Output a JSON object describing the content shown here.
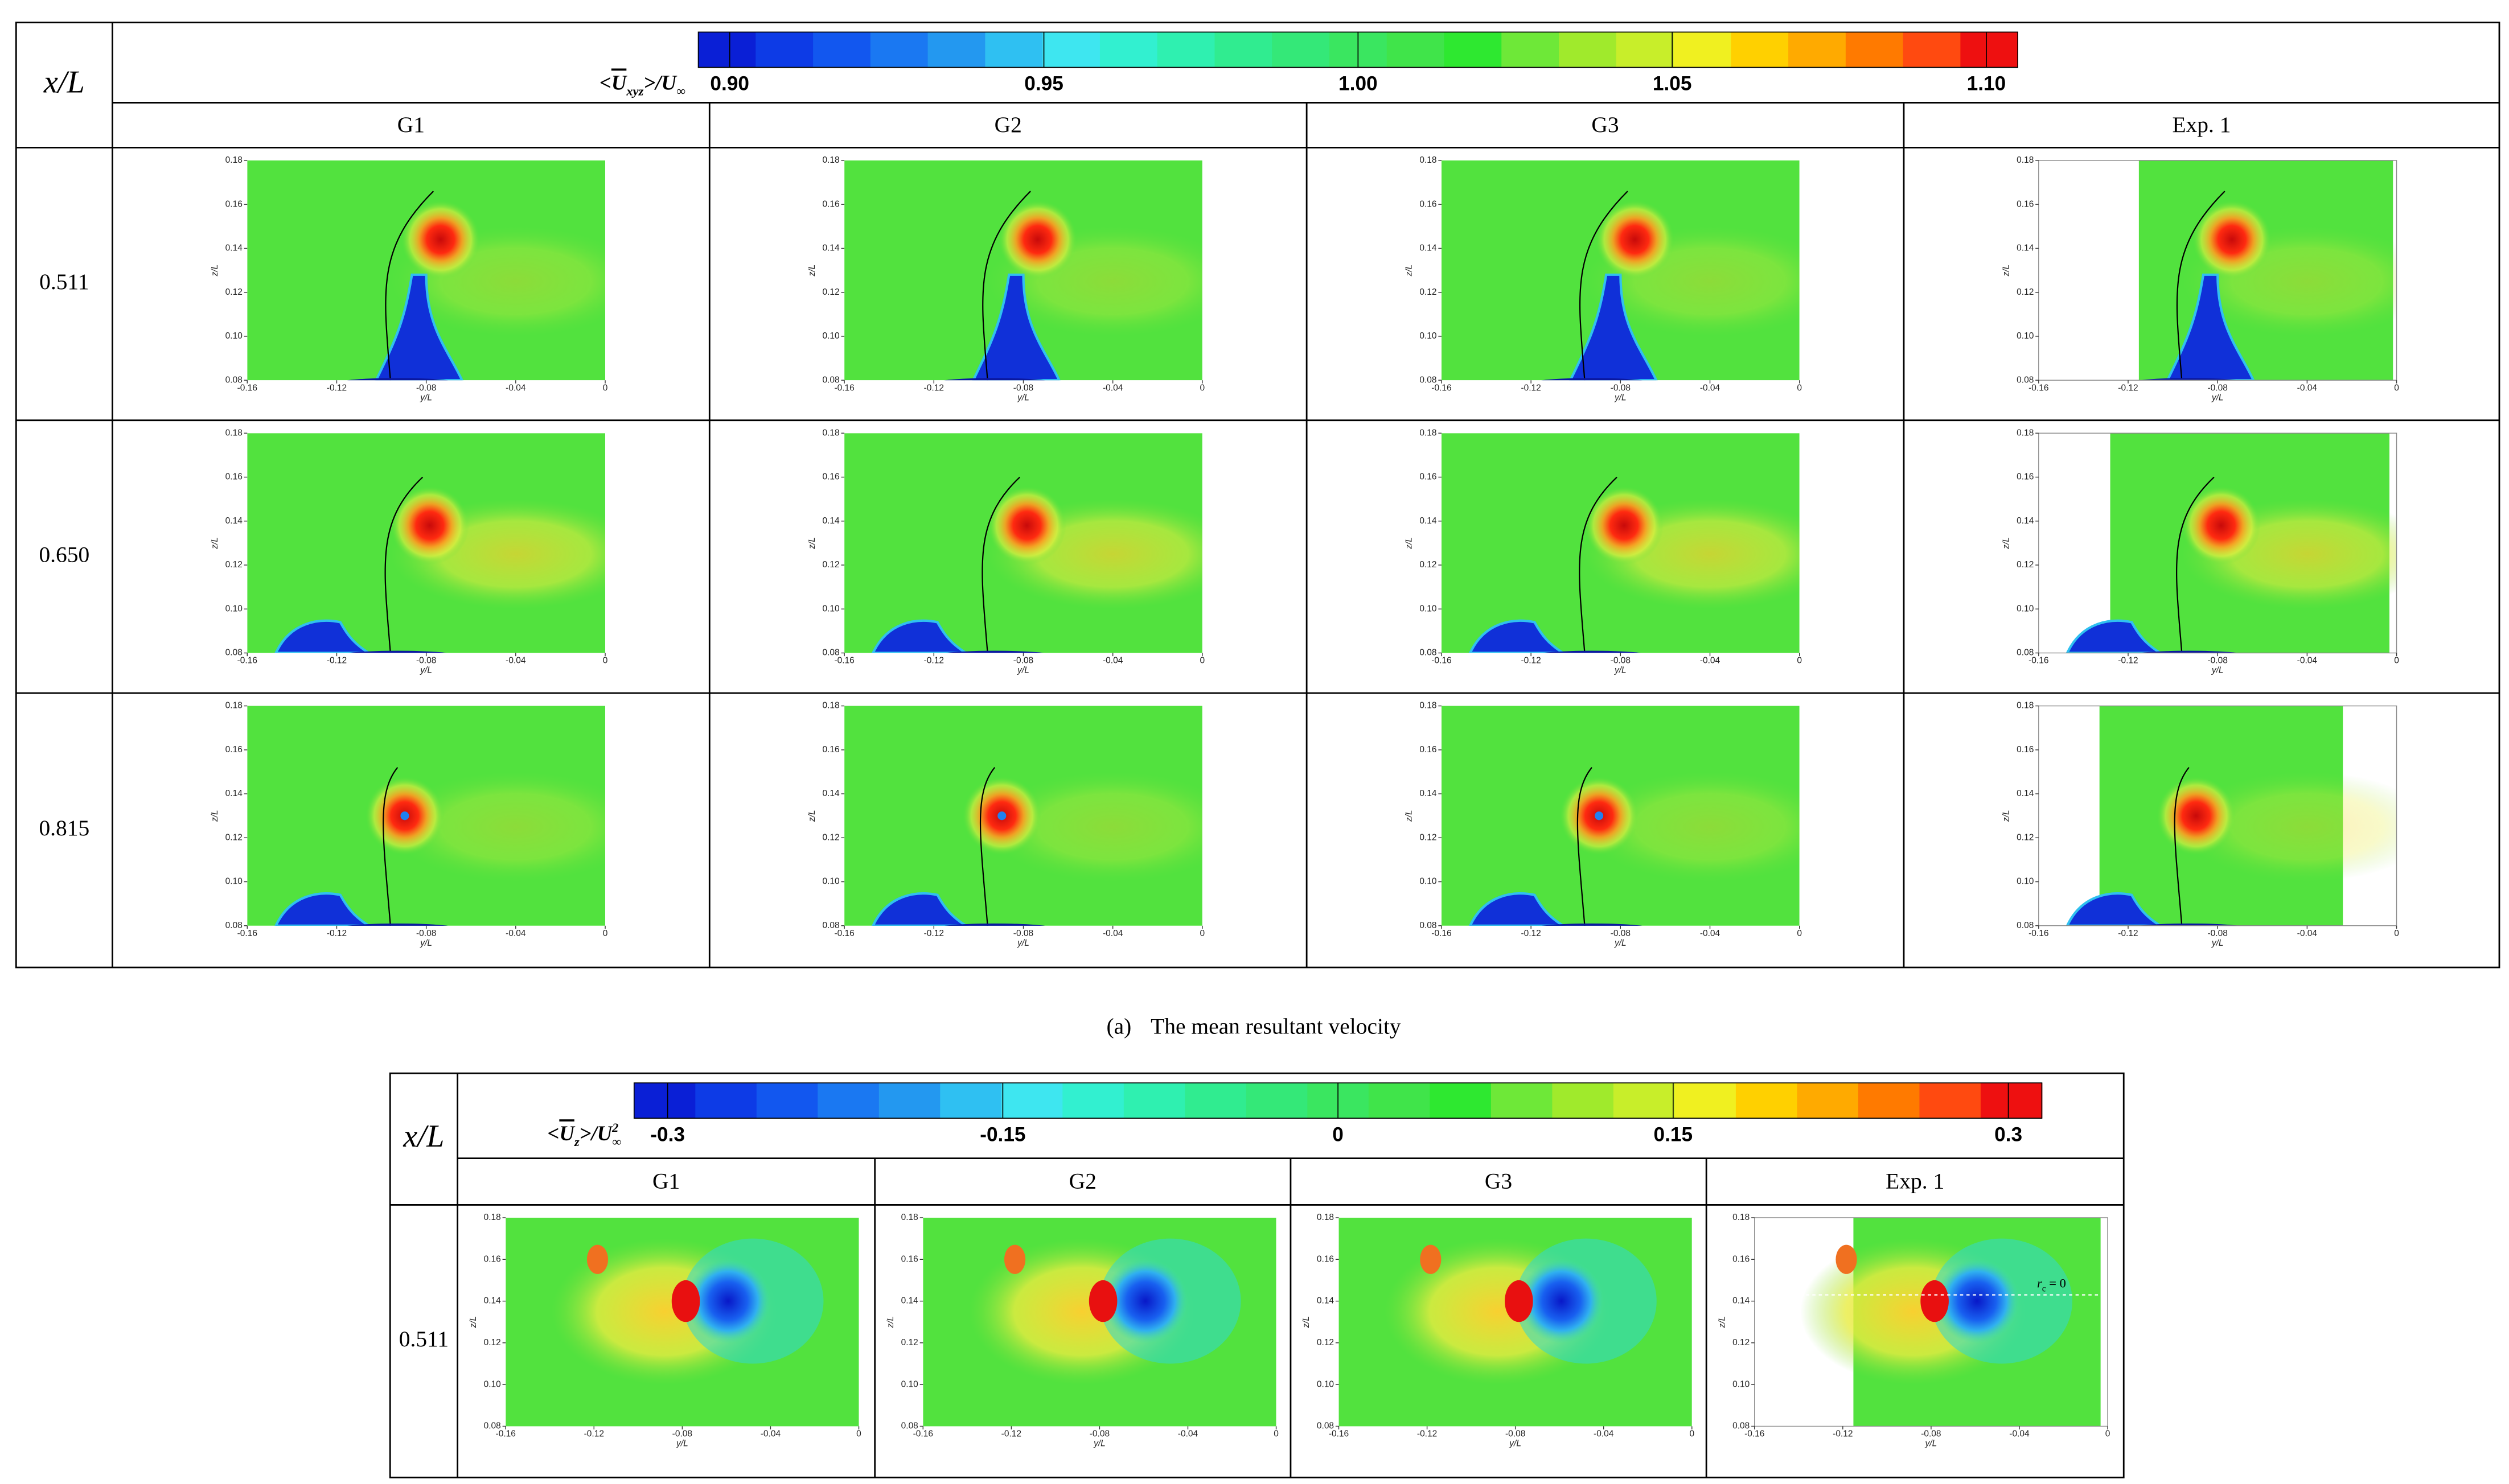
{
  "panel_axes": {
    "xlabel": "y/L",
    "ylabel": "z/L",
    "xlim": [
      -0.16,
      0
    ],
    "ylim": [
      0.08,
      0.18
    ],
    "xticks": [
      -0.16,
      -0.12,
      -0.08,
      -0.04,
      0
    ],
    "yticks": [
      0.08,
      {
        "value": 0.1,
        "label": "0.10"
      },
      0.12,
      0.14,
      0.16,
      0.18
    ]
  },
  "figure_a": {
    "corner": "x/L",
    "colorbar": {
      "label": {
        "pre": "<",
        "var": "U",
        "sub": "xyz",
        "post": ">/U",
        "sub2": "∞"
      },
      "lim": [
        0.895,
        1.105
      ],
      "ticks": [
        {
          "value": 0.9,
          "label": "0.90"
        },
        0.95,
        {
          "value": 1,
          "label": "1.00"
        },
        1.05,
        {
          "value": 1.1,
          "label": "1.10"
        }
      ],
      "colors": [
        "#0a1fd6",
        "#0d3be6",
        "#1257ef",
        "#1a78f2",
        "#2398f0",
        "#2fc0f2",
        "#3ee6f0",
        "#32f0d0",
        "#2ff0b0",
        "#30ec90",
        "#34e878",
        "#3ae660",
        "#40e44a",
        "#2ee830",
        "#6ee838",
        "#a0ea2c",
        "#c8ee2a",
        "#f0f020",
        "#ffd000",
        "#ffaa00",
        "#ff7a00",
        "#ff4a10",
        "#ee1010"
      ]
    },
    "columns": [
      "G1",
      "G2",
      "G3",
      "Exp. 1"
    ],
    "rows": [
      "0.511",
      "0.650",
      "0.815"
    ],
    "caption": {
      "tag": "(a)",
      "text": "The mean resultant velocity"
    }
  },
  "figure_b": {
    "corner": "x/L",
    "colorbar": {
      "label": {
        "pre": "<",
        "var": "U",
        "sub": "z",
        "post": ">/U",
        "sup": "2",
        "sub2": "∞"
      },
      "lim": [
        -0.315,
        0.315
      ],
      "ticks": [
        -0.3,
        -0.15,
        0,
        0.15,
        0.3
      ],
      "colors": [
        "#0a1fd6",
        "#0d3be6",
        "#1257ef",
        "#1a78f2",
        "#2398f0",
        "#2fc0f2",
        "#3ee6f0",
        "#32f0d0",
        "#2ff0b0",
        "#30ec90",
        "#34e878",
        "#3ae660",
        "#40e44a",
        "#2ee830",
        "#6ee838",
        "#a0ea2c",
        "#c8ee2a",
        "#f0f020",
        "#ffd000",
        "#ffaa00",
        "#ff7a00",
        "#ff4a10",
        "#ee1010"
      ]
    },
    "columns": [
      "G1",
      "G2",
      "G3",
      "Exp. 1"
    ],
    "rows": [
      "0.511"
    ],
    "annotation": {
      "r": "r",
      "sub": "c",
      "eq": " = 0"
    }
  }
}
